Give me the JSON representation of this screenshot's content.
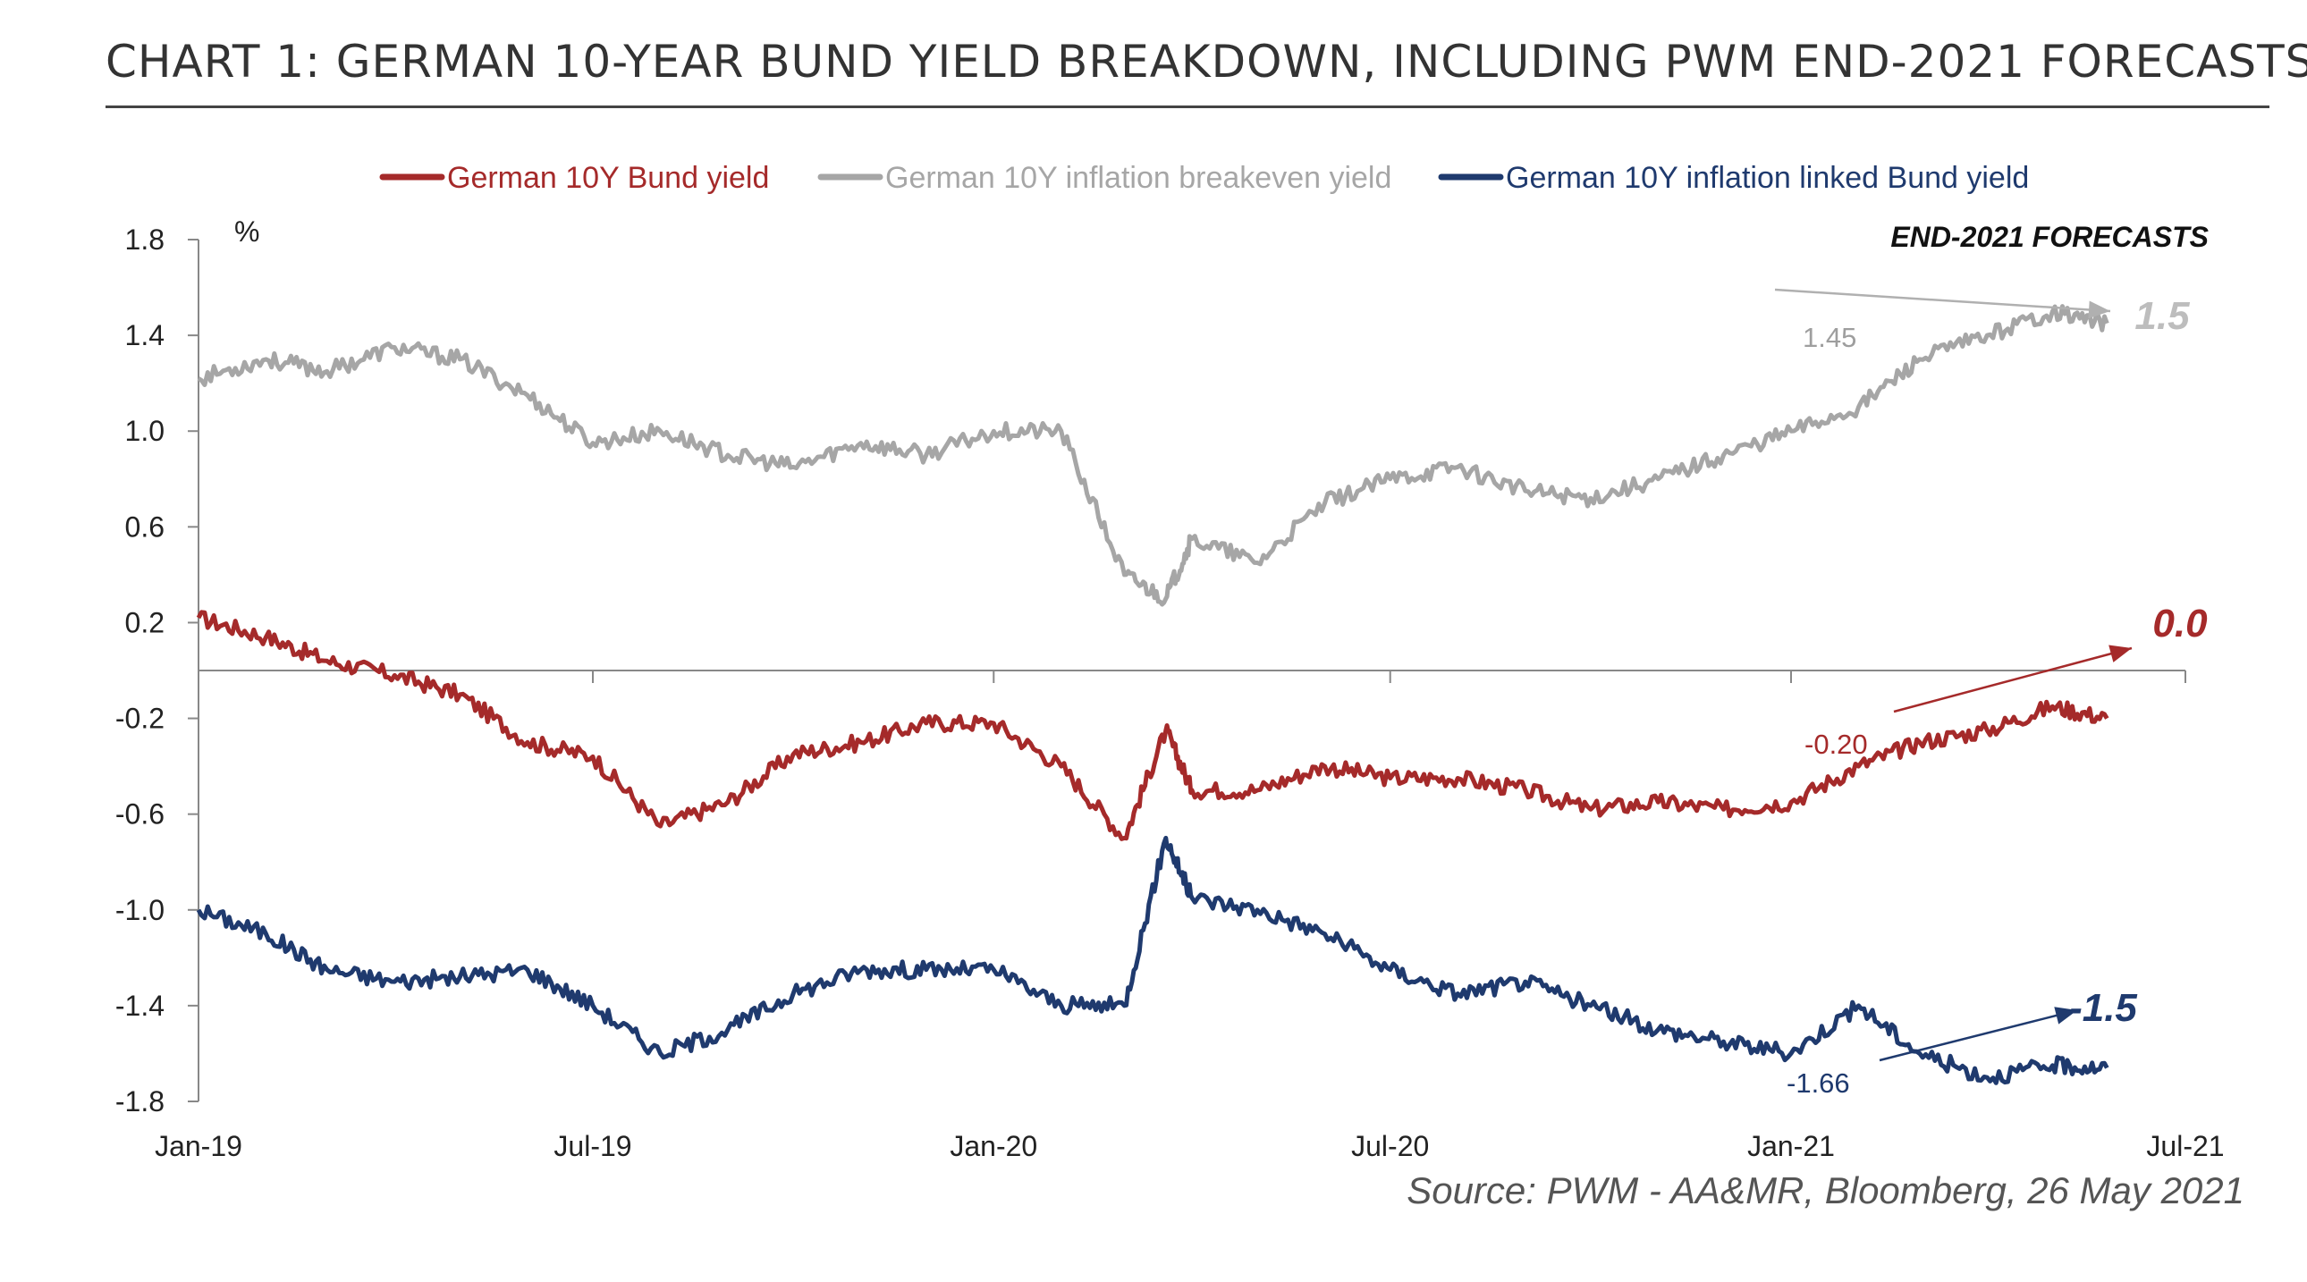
{
  "title": "CHART 1: GERMAN 10-YEAR BUND YIELD BREAKDOWN, INCLUDING PWM END-2021 FORECASTS",
  "source": "Source: PWM - AA&MR, Bloomberg, 26 May 2021",
  "colors": {
    "red": "#A52A2A",
    "grey": "#A6A6A6",
    "navy": "#1F3A6E"
  },
  "chart_data": {
    "type": "line",
    "y_unit_label": "%",
    "ylim": [
      -1.8,
      1.8
    ],
    "y_ticks": [
      "1.8",
      "1.4",
      "1.0",
      "0.6",
      "0.2",
      "-0.2",
      "-0.6",
      "-1.0",
      "-1.4",
      "-1.8"
    ],
    "x_ticks": [
      "Jan-19",
      "Jul-19",
      "Jan-20",
      "Jul-20",
      "Jan-21",
      "Jul-21"
    ],
    "legend": [
      "German 10Y Bund yield",
      "German 10Y inflation breakeven yield",
      "German 10Y inflation linked Bund yield"
    ],
    "forecast_header": "END-2021 FORECASTS",
    "x": [
      "2019-01-01",
      "2019-02-01",
      "2019-03-01",
      "2019-04-01",
      "2019-05-01",
      "2019-06-01",
      "2019-07-01",
      "2019-08-01",
      "2019-09-01",
      "2019-10-01",
      "2019-11-01",
      "2019-12-01",
      "2020-01-01",
      "2020-02-01",
      "2020-03-01",
      "2020-03-20",
      "2020-04-01",
      "2020-05-01",
      "2020-06-01",
      "2020-07-01",
      "2020-08-01",
      "2020-09-01",
      "2020-10-01",
      "2020-11-01",
      "2020-12-01",
      "2021-01-01",
      "2021-02-01",
      "2021-03-01",
      "2021-04-01",
      "2021-05-01",
      "2021-05-26"
    ],
    "series": [
      {
        "name": "German 10Y Bund yield",
        "color": "#A52A2A",
        "values": [
          0.22,
          0.14,
          0.04,
          -0.02,
          -0.1,
          -0.3,
          -0.36,
          -0.65,
          -0.55,
          -0.35,
          -0.3,
          -0.22,
          -0.22,
          -0.4,
          -0.7,
          -0.25,
          -0.5,
          -0.5,
          -0.4,
          -0.45,
          -0.45,
          -0.5,
          -0.58,
          -0.55,
          -0.58,
          -0.55,
          -0.4,
          -0.3,
          -0.25,
          -0.15,
          -0.2
        ],
        "last_label": "-0.20",
        "forecast": "0.0"
      },
      {
        "name": "German 10Y inflation breakeven yield",
        "color": "#A6A6A6",
        "values": [
          1.22,
          1.3,
          1.25,
          1.35,
          1.3,
          1.15,
          0.95,
          1.0,
          0.9,
          0.85,
          0.95,
          0.9,
          1.0,
          1.0,
          0.4,
          0.3,
          0.55,
          0.45,
          0.7,
          0.8,
          0.85,
          0.75,
          0.72,
          0.8,
          0.9,
          1.0,
          1.1,
          1.3,
          1.4,
          1.5,
          1.45
        ],
        "last_label": "1.45",
        "forecast": "1.5"
      },
      {
        "name": "German 10Y inflation linked Bund yield",
        "color": "#1F3A6E",
        "values": [
          -1.0,
          -1.1,
          -1.25,
          -1.3,
          -1.28,
          -1.25,
          -1.4,
          -1.6,
          -1.5,
          -1.35,
          -1.25,
          -1.25,
          -1.25,
          -1.4,
          -1.4,
          -0.7,
          -0.95,
          -1.0,
          -1.1,
          -1.25,
          -1.35,
          -1.3,
          -1.4,
          -1.5,
          -1.55,
          -1.6,
          -1.4,
          -1.6,
          -1.7,
          -1.65,
          -1.66
        ],
        "last_label": "-1.66",
        "forecast": "-1.5"
      }
    ]
  }
}
